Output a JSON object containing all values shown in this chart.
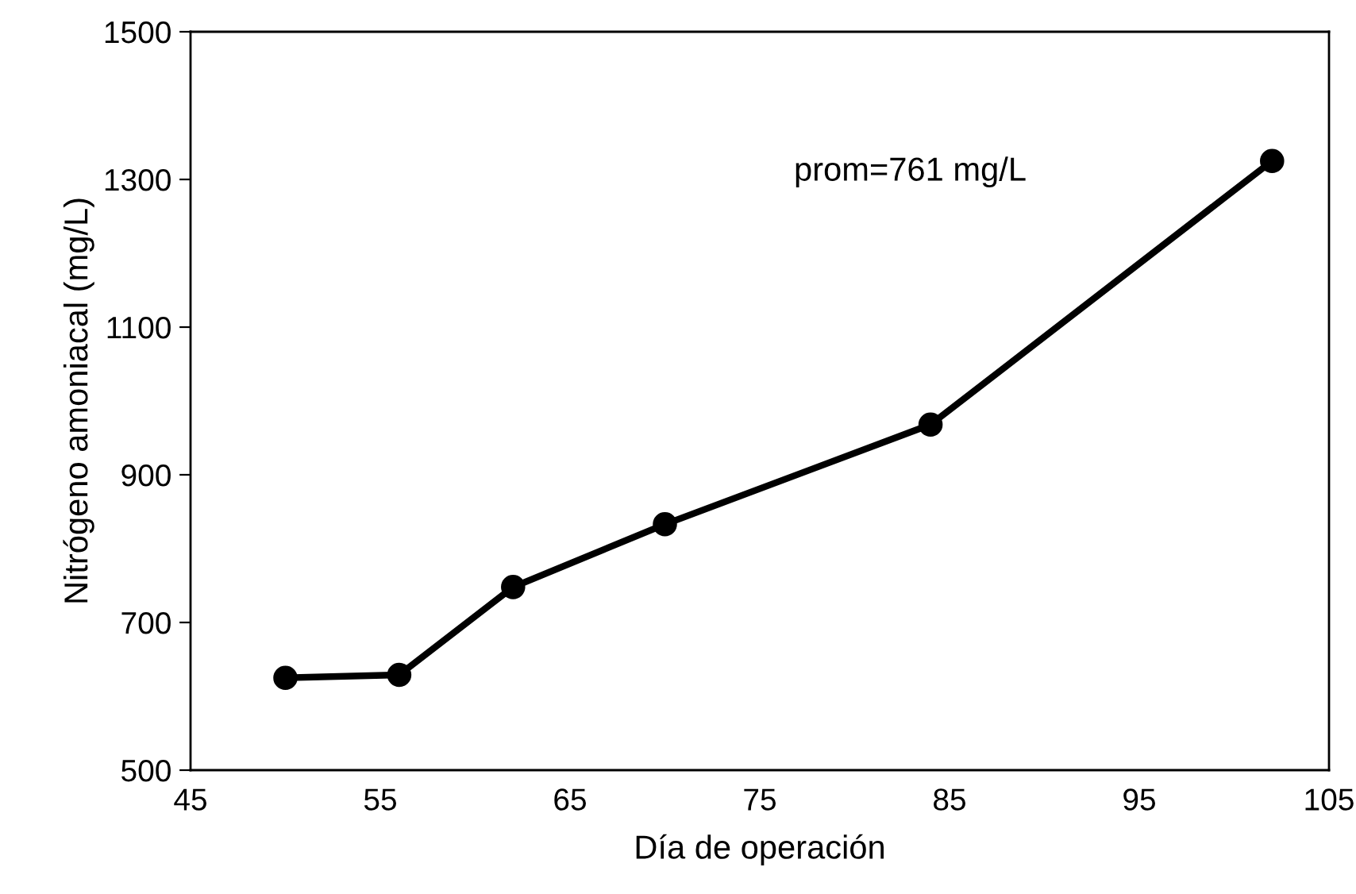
{
  "chart_data": {
    "type": "line",
    "xlabel": "Día de operación",
    "ylabel": "Nitrógeno amoniacal (mg/L)",
    "x": [
      50,
      56,
      62,
      70,
      84,
      102
    ],
    "series": [
      {
        "color": "#000000",
        "values": [
          625,
          629,
          748,
          833,
          968,
          1325
        ]
      }
    ],
    "xlim": [
      45,
      105
    ],
    "xticks": [
      45,
      55,
      65,
      75,
      85,
      95,
      105
    ],
    "ylim": [
      500,
      1500
    ],
    "yticks": [
      500,
      700,
      900,
      1100,
      1300,
      1500
    ],
    "marker": "circle",
    "line_style": "solid",
    "grid": false,
    "legend": false,
    "annotations": [
      "prom=761 mg/L"
    ]
  }
}
